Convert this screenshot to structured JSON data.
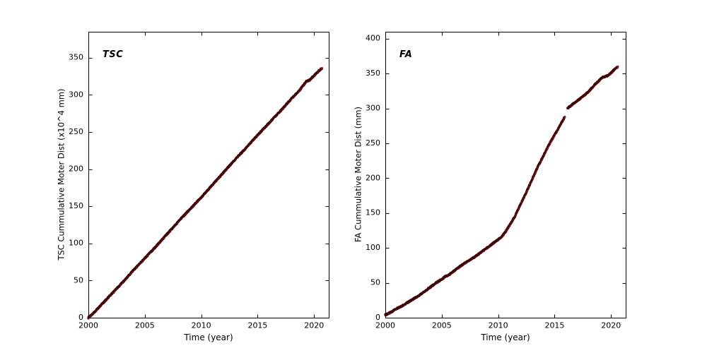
{
  "figure": {
    "background": "#ffffff",
    "axis_color": "#000000"
  },
  "chart_data": [
    {
      "type": "scatter",
      "annotation": "TSC",
      "xlabel": "Time (year)",
      "ylabel": "TSC Cummulative Moter Dist (x10^4 mm)",
      "xlim": [
        2000,
        2021.3
      ],
      "ylim": [
        0,
        385
      ],
      "xticks": [
        2000,
        2005,
        2010,
        2015,
        2020
      ],
      "yticks": [
        0,
        50,
        100,
        150,
        200,
        250,
        300,
        350
      ],
      "xtick_labels": [
        "2000",
        "2005",
        "2010",
        "2015",
        "2020"
      ],
      "ytick_labels": [
        "0",
        "50",
        "100",
        "150",
        "200",
        "250",
        "300",
        "350"
      ],
      "grid": false,
      "legend": "none",
      "marker_color": "#8b1212",
      "marker_edge": "#2b0000",
      "segments": [
        [
          [
            2000,
            0
          ],
          [
            2000.5,
            7
          ],
          [
            2001,
            15
          ],
          [
            2001.5,
            23
          ],
          [
            2002,
            31
          ],
          [
            2003,
            47
          ],
          [
            2004,
            64
          ],
          [
            2005,
            80
          ],
          [
            2006,
            96
          ],
          [
            2007,
            113
          ],
          [
            2008,
            130
          ],
          [
            2009,
            146
          ],
          [
            2010,
            162
          ],
          [
            2011,
            179
          ],
          [
            2012,
            196
          ],
          [
            2013,
            213
          ],
          [
            2014,
            229
          ],
          [
            2015,
            246
          ],
          [
            2016,
            262
          ],
          [
            2017,
            278
          ],
          [
            2018,
            295
          ],
          [
            2018.7,
            306
          ],
          [
            2019,
            312
          ],
          [
            2019.3,
            318
          ],
          [
            2019.6,
            320
          ],
          [
            2020,
            326
          ],
          [
            2020.4,
            332
          ],
          [
            2020.7,
            336
          ]
        ]
      ]
    },
    {
      "type": "scatter",
      "annotation": "FA",
      "xlabel": "Time (year)",
      "ylabel": "FA Cummulative Moter Dist (mm)",
      "xlim": [
        2000,
        2021.3
      ],
      "ylim": [
        0,
        410
      ],
      "xticks": [
        2000,
        2005,
        2010,
        2015,
        2020
      ],
      "yticks": [
        0,
        50,
        100,
        150,
        200,
        250,
        300,
        350,
        400
      ],
      "xtick_labels": [
        "2000",
        "2005",
        "2010",
        "2015",
        "2020"
      ],
      "ytick_labels": [
        "0",
        "50",
        "100",
        "150",
        "200",
        "250",
        "300",
        "350",
        "400"
      ],
      "grid": false,
      "legend": "none",
      "marker_color": "#8b1212",
      "marker_edge": "#2b0000",
      "segments": [
        [
          [
            2000,
            4
          ],
          [
            2000.5,
            8
          ],
          [
            2001,
            13
          ],
          [
            2001.5,
            17
          ],
          [
            2002,
            22
          ],
          [
            2002.5,
            27
          ],
          [
            2003,
            32
          ],
          [
            2003.5,
            38
          ],
          [
            2004,
            44
          ],
          [
            2004.5,
            50
          ],
          [
            2005,
            55
          ],
          [
            2005.3,
            59
          ],
          [
            2005.6,
            61
          ],
          [
            2006,
            66
          ],
          [
            2006.5,
            72
          ],
          [
            2007,
            78
          ],
          [
            2007.5,
            83
          ],
          [
            2008,
            88
          ],
          [
            2008.5,
            94
          ],
          [
            2009,
            100
          ],
          [
            2009.5,
            106
          ],
          [
            2010,
            112
          ],
          [
            2010.3,
            116
          ],
          [
            2010.6,
            122
          ],
          [
            2011,
            132
          ],
          [
            2011.5,
            146
          ],
          [
            2012,
            163
          ],
          [
            2012.5,
            180
          ],
          [
            2013,
            198
          ],
          [
            2013.5,
            216
          ],
          [
            2014,
            232
          ],
          [
            2014.5,
            248
          ],
          [
            2015,
            262
          ],
          [
            2015.5,
            276
          ],
          [
            2015.9,
            288
          ]
        ],
        [
          [
            2016.15,
            300
          ],
          [
            2016.5,
            305
          ],
          [
            2017,
            311
          ],
          [
            2017.5,
            317
          ],
          [
            2018,
            324
          ],
          [
            2018.5,
            333
          ],
          [
            2019,
            341
          ],
          [
            2019.3,
            345
          ],
          [
            2019.7,
            347
          ],
          [
            2020,
            351
          ],
          [
            2020.3,
            356
          ],
          [
            2020.6,
            360
          ]
        ]
      ]
    }
  ]
}
